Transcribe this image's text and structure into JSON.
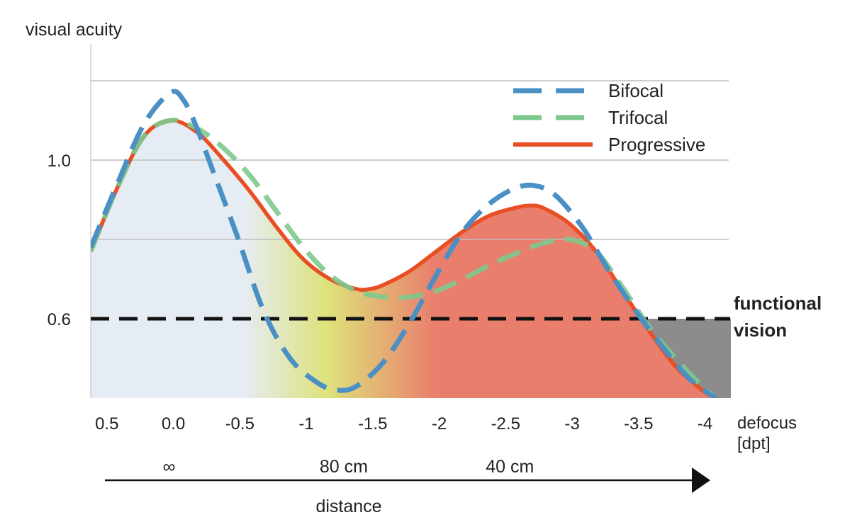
{
  "chart_data": {
    "type": "line",
    "ylabel": "visual acuity",
    "xlabel": "defocus\n[dpt]",
    "xlabel_lines": [
      "defocus",
      "[dpt]"
    ],
    "x_ticks": [
      0.5,
      0.0,
      -0.5,
      -1,
      -1.5,
      -2,
      -2.5,
      -3,
      -3.5,
      -4
    ],
    "x_tick_labels": [
      "0.5",
      "0.0",
      "-0.5",
      "-1",
      "-1.5",
      "-2",
      "-2.5",
      "-3",
      "-3.5",
      "-4"
    ],
    "xlim": [
      0.6,
      -4.1
    ],
    "ylim": [
      0.4,
      1.3
    ],
    "y_ticks": [
      0.6,
      1.0
    ],
    "y_tick_labels": [
      "0.6",
      "1.0"
    ],
    "gridlines_y": [
      0.8,
      1.0,
      1.2
    ],
    "threshold": {
      "value": 0.6,
      "label_lines": [
        "functional",
        "vision"
      ]
    },
    "legend_position": "top-right",
    "series": [
      {
        "name": "Bifocal",
        "style": "dashed",
        "color": "#4a90c4",
        "x": [
          0.6,
          0.4,
          0.2,
          0.0,
          -0.1,
          -0.2,
          -0.3,
          -0.5,
          -0.7,
          -0.9,
          -1.1,
          -1.25,
          -1.4,
          -1.6,
          -1.8,
          -2.0,
          -2.2,
          -2.4,
          -2.6,
          -2.75,
          -2.9,
          -3.1,
          -3.3,
          -3.5,
          -3.7,
          -3.9,
          -4.1
        ],
        "y": [
          0.78,
          0.94,
          1.09,
          1.17,
          1.15,
          1.08,
          0.99,
          0.81,
          0.62,
          0.5,
          0.44,
          0.42,
          0.43,
          0.49,
          0.59,
          0.71,
          0.82,
          0.89,
          0.93,
          0.935,
          0.91,
          0.83,
          0.72,
          0.62,
          0.53,
          0.45,
          0.4
        ]
      },
      {
        "name": "Trifocal",
        "style": "dashed",
        "color": "#7dc98d",
        "x": [
          0.6,
          0.4,
          0.2,
          0.0,
          -0.2,
          -0.4,
          -0.6,
          -0.8,
          -1.0,
          -1.2,
          -1.4,
          -1.6,
          -1.8,
          -2.0,
          -2.2,
          -2.4,
          -2.6,
          -2.8,
          -3.0,
          -3.2,
          -3.4,
          -3.6,
          -3.8,
          -4.0,
          -4.1
        ],
        "y": [
          0.77,
          0.93,
          1.06,
          1.1,
          1.08,
          1.03,
          0.96,
          0.87,
          0.78,
          0.71,
          0.67,
          0.655,
          0.655,
          0.67,
          0.7,
          0.735,
          0.765,
          0.79,
          0.8,
          0.77,
          0.68,
          0.58,
          0.5,
          0.43,
          0.4
        ]
      },
      {
        "name": "Progressive",
        "style": "solid",
        "color": "#e84f24",
        "x": [
          0.6,
          0.4,
          0.2,
          0.0,
          -0.2,
          -0.4,
          -0.6,
          -0.8,
          -1.0,
          -1.2,
          -1.4,
          -1.5,
          -1.6,
          -1.8,
          -2.0,
          -2.2,
          -2.4,
          -2.6,
          -2.7,
          -2.8,
          -3.0,
          -3.2,
          -3.4,
          -3.6,
          -3.8,
          -4.0,
          -4.1
        ],
        "y": [
          0.77,
          0.93,
          1.06,
          1.1,
          1.07,
          1.0,
          0.92,
          0.83,
          0.75,
          0.7,
          0.675,
          0.675,
          0.685,
          0.72,
          0.77,
          0.82,
          0.86,
          0.88,
          0.885,
          0.88,
          0.84,
          0.77,
          0.67,
          0.57,
          0.48,
          0.42,
          0.4
        ]
      }
    ],
    "distance_axis": {
      "label": "distance",
      "marks": [
        {
          "label": "∞",
          "x": 0.0
        },
        {
          "label": "80 cm",
          "x": -1.25
        },
        {
          "label": "40 cm",
          "x": -2.5
        }
      ]
    },
    "colors": {
      "region_far": "#e6ecf3",
      "region_mid": "#dde27a",
      "region_near": "#ea7e6c",
      "below_threshold_gray": "#8c8c8c",
      "grid": "#bdbdbd",
      "threshold": "#111111",
      "axis_arrow": "#111111"
    }
  }
}
